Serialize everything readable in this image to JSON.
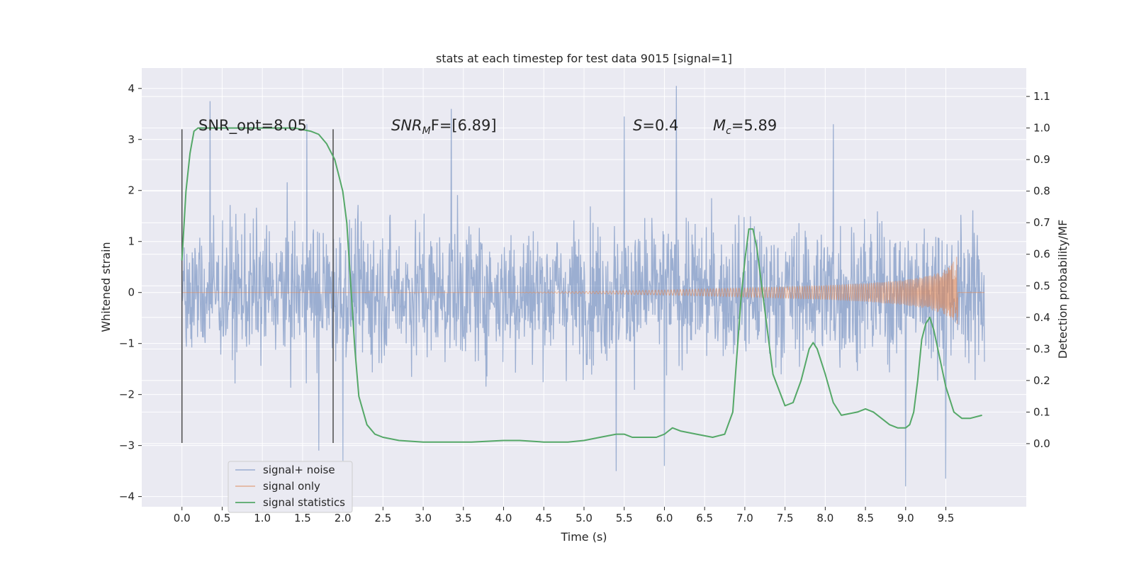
{
  "chart_data": {
    "type": "line",
    "title": "stats at each timestep for test data 9015 [signal=1]",
    "xlabel": "Time (s)",
    "ylabel_left": "Whitened strain",
    "ylabel_right": "Detection probability/MF",
    "xlim": [
      -0.5,
      10.5
    ],
    "ylim_left": [
      -4.2,
      4.4
    ],
    "ylim_right": [
      -0.2,
      1.19
    ],
    "x_ticks": [
      "0.0",
      "0.5",
      "1.0",
      "1.5",
      "2.0",
      "2.5",
      "3.0",
      "3.5",
      "4.0",
      "4.5",
      "5.0",
      "5.5",
      "6.0",
      "6.5",
      "7.0",
      "7.5",
      "8.0",
      "8.5",
      "9.0",
      "9.5"
    ],
    "y_left_ticks": [
      "4",
      "3",
      "2",
      "1",
      "0",
      "−1",
      "−2",
      "−3",
      "−4"
    ],
    "y_right_ticks": [
      "1.1",
      "1.0",
      "0.9",
      "0.8",
      "0.7",
      "0.6",
      "0.5",
      "0.4",
      "0.3",
      "0.2",
      "0.1",
      "0.0"
    ],
    "grid": true,
    "legend_position": "lower-left",
    "annotations": {
      "snr_opt": "SNR_opt=8.05",
      "snr_mf_base": "SNR",
      "snr_mf_sub": "M",
      "snr_mf_tail": "F=[6.89]",
      "s_base": "S",
      "s_tail": "=0.4",
      "mc_base": "M",
      "mc_sub": "c",
      "mc_tail": "=5.89"
    },
    "vertical_markers": [
      {
        "x": 0.0,
        "y_range": [
          -2.95,
          3.2
        ]
      },
      {
        "x": 1.88,
        "y_range": [
          -2.95,
          3.2
        ]
      }
    ],
    "series": [
      {
        "name": "signal+ noise",
        "color": "#4c72b0",
        "axis": "left",
        "description": "whitened noisy strain, 0 to 10 s, mostly within ±2.5 with spikes to about 4",
        "x_range": [
          0.0,
          9.98
        ],
        "spikes": [
          {
            "x": 0.35,
            "y": 3.75
          },
          {
            "x": 1.55,
            "y": 3.3
          },
          {
            "x": 3.35,
            "y": 3.6
          },
          {
            "x": 6.15,
            "y": 4.05
          },
          {
            "x": 5.5,
            "y": 3.45
          },
          {
            "x": 8.1,
            "y": 3.3
          },
          {
            "x": 5.4,
            "y": -3.5
          },
          {
            "x": 9.0,
            "y": -3.8
          },
          {
            "x": 9.5,
            "y": -3.65
          },
          {
            "x": 2.0,
            "y": -3.3
          },
          {
            "x": 6.0,
            "y": -3.4
          },
          {
            "x": 1.7,
            "y": -3.1
          }
        ]
      },
      {
        "name": "signal only",
        "color": "#dd8452",
        "axis": "left",
        "description": "chirp signal growing from 0 to about ±0.8 at merger near 9.65 s",
        "envelope": [
          [
            0.0,
            0.0
          ],
          [
            4.0,
            0.0
          ],
          [
            5.0,
            0.02
          ],
          [
            6.0,
            0.05
          ],
          [
            7.0,
            0.09
          ],
          [
            8.0,
            0.14
          ],
          [
            8.5,
            0.18
          ],
          [
            9.0,
            0.25
          ],
          [
            9.3,
            0.33
          ],
          [
            9.5,
            0.45
          ],
          [
            9.62,
            0.65
          ],
          [
            9.65,
            0.8
          ]
        ],
        "merger_x": 9.65
      },
      {
        "name": "signal statistics",
        "color": "#55a868",
        "axis": "right",
        "x": [
          0.0,
          0.05,
          0.1,
          0.15,
          0.2,
          0.3,
          0.5,
          1.0,
          1.4,
          1.6,
          1.7,
          1.8,
          1.9,
          1.95,
          2.0,
          2.05,
          2.1,
          2.15,
          2.2,
          2.3,
          2.4,
          2.5,
          2.7,
          3.0,
          3.3,
          3.6,
          4.0,
          4.2,
          4.5,
          4.8,
          5.0,
          5.2,
          5.4,
          5.5,
          5.6,
          5.8,
          5.9,
          6.0,
          6.05,
          6.1,
          6.2,
          6.4,
          6.6,
          6.75,
          6.85,
          6.95,
          7.0,
          7.05,
          7.1,
          7.15,
          7.25,
          7.35,
          7.5,
          7.6,
          7.7,
          7.8,
          7.85,
          7.9,
          8.0,
          8.1,
          8.2,
          8.4,
          8.5,
          8.6,
          8.7,
          8.8,
          8.9,
          9.0,
          9.05,
          9.1,
          9.15,
          9.2,
          9.25,
          9.3,
          9.35,
          9.4,
          9.5,
          9.6,
          9.7,
          9.8,
          9.95
        ],
        "values": [
          0.58,
          0.8,
          0.92,
          0.99,
          1.0,
          1.0,
          1.0,
          1.0,
          1.0,
          0.99,
          0.98,
          0.95,
          0.9,
          0.85,
          0.8,
          0.7,
          0.5,
          0.3,
          0.15,
          0.06,
          0.03,
          0.02,
          0.01,
          0.005,
          0.005,
          0.005,
          0.01,
          0.01,
          0.005,
          0.005,
          0.01,
          0.02,
          0.03,
          0.03,
          0.02,
          0.02,
          0.02,
          0.03,
          0.04,
          0.05,
          0.04,
          0.03,
          0.02,
          0.03,
          0.1,
          0.45,
          0.58,
          0.68,
          0.68,
          0.62,
          0.42,
          0.22,
          0.12,
          0.13,
          0.2,
          0.3,
          0.32,
          0.3,
          0.22,
          0.13,
          0.09,
          0.1,
          0.11,
          0.1,
          0.08,
          0.06,
          0.05,
          0.05,
          0.06,
          0.1,
          0.2,
          0.33,
          0.38,
          0.4,
          0.36,
          0.3,
          0.18,
          0.1,
          0.08,
          0.08,
          0.09
        ]
      }
    ]
  }
}
